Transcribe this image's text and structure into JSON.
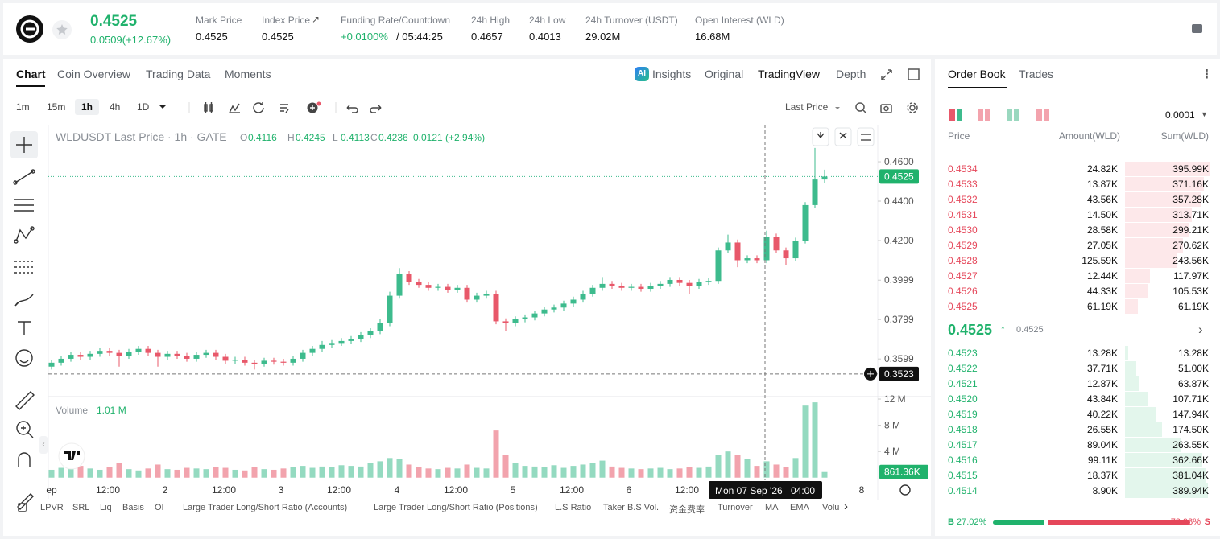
{
  "header": {
    "price": "0.4525",
    "change": "0.0509(+12.67%)",
    "stats": [
      {
        "label": "Mark Price",
        "value": "0.4525"
      },
      {
        "label": "Index Price",
        "value": "0.4525"
      },
      {
        "label": "Funding Rate/Countdown",
        "value": "+0.0100%",
        "extra": "/ 05:44:25"
      },
      {
        "label": "24h High",
        "value": "0.4657"
      },
      {
        "label": "24h Low",
        "value": "0.4013"
      },
      {
        "label": "24h Turnover (USDT)",
        "value": "29.02M"
      },
      {
        "label": "Open Interest (WLD)",
        "value": "16.68M"
      }
    ]
  },
  "tabs": [
    "Chart",
    "Coin Overview",
    "Trading Data",
    "Moments"
  ],
  "views": {
    "badge": "AI",
    "items": [
      "Insights",
      "Original",
      "TradingView",
      "Depth"
    ]
  },
  "intervals": [
    "1m",
    "15m",
    "1h",
    "4h",
    "1D"
  ],
  "price_type": "Last Price",
  "chart_data": {
    "type": "candlestick",
    "legend": "WLDUSDT Last Price · 1h · GATE",
    "ohlc": [
      {
        "key": "O",
        "value": "0.4116"
      },
      {
        "key": "H",
        "value": "0.4245"
      },
      {
        "key": "L",
        "value": "0.4113"
      },
      {
        "key": "C",
        "value": "0.4236"
      }
    ],
    "ohlc_change": "0.0121 (+2.94%)",
    "ylim": [
      0.3412,
      0.4788
    ],
    "yticks": [
      {
        "value": 0.46,
        "label": "0.4600"
      },
      {
        "value": 0.44,
        "label": "0.4400"
      },
      {
        "value": 0.42,
        "label": "0.4200"
      },
      0.3999,
      0.3799,
      0.3599
    ],
    "last_price": 0.4525,
    "crosshair_price": 0.3523,
    "crosshair_date": "Mon 07 Sep '26",
    "crosshair_time": "04:00",
    "xticks": [
      "ep",
      "12:00",
      "2",
      "12:00",
      "3",
      "12:00",
      "4",
      "12:00",
      "5",
      "12:00",
      "6",
      "12:00",
      "8"
    ],
    "up_color": "#3dbb8d",
    "down_color": "#e8586a",
    "open": [
      0.356,
      0.358,
      0.36,
      0.362,
      0.361,
      0.3625,
      0.364,
      0.363,
      0.3615,
      0.3635,
      0.365,
      0.363,
      0.361,
      0.3625,
      0.3615,
      0.36,
      0.362,
      0.363,
      0.361,
      0.359,
      0.3595,
      0.358,
      0.3575,
      0.359,
      0.3585,
      0.358,
      0.36,
      0.363,
      0.365,
      0.367,
      0.368,
      0.369,
      0.37,
      0.372,
      0.374,
      0.378,
      0.392,
      0.403,
      0.399,
      0.3975,
      0.396,
      0.3965,
      0.395,
      0.396,
      0.39,
      0.392,
      0.393,
      0.379,
      0.378,
      0.38,
      0.381,
      0.383,
      0.385,
      0.386,
      0.388,
      0.39,
      0.393,
      0.396,
      0.398,
      0.397,
      0.396,
      0.3965,
      0.3955,
      0.397,
      0.398,
      0.4,
      0.3985,
      0.397,
      0.399,
      0.3995,
      0.415,
      0.419,
      0.41,
      0.411,
      0.41,
      0.422,
      0.415,
      0.411,
      0.42,
      0.438,
      0.451
    ],
    "high": [
      0.3595,
      0.3615,
      0.3635,
      0.3635,
      0.364,
      0.3655,
      0.3655,
      0.3645,
      0.365,
      0.3665,
      0.3665,
      0.3645,
      0.364,
      0.364,
      0.363,
      0.3635,
      0.3645,
      0.3645,
      0.3625,
      0.361,
      0.361,
      0.3595,
      0.3605,
      0.3605,
      0.36,
      0.3615,
      0.3645,
      0.3665,
      0.369,
      0.3695,
      0.3705,
      0.3715,
      0.3735,
      0.3755,
      0.38,
      0.394,
      0.406,
      0.4045,
      0.4005,
      0.399,
      0.398,
      0.398,
      0.3975,
      0.3975,
      0.3935,
      0.3945,
      0.3945,
      0.3805,
      0.3815,
      0.3825,
      0.3845,
      0.3865,
      0.3875,
      0.3895,
      0.3915,
      0.3945,
      0.3975,
      0.4015,
      0.3995,
      0.3985,
      0.398,
      0.398,
      0.3985,
      0.3995,
      0.4015,
      0.4015,
      0.4,
      0.4005,
      0.401,
      0.4165,
      0.423,
      0.4205,
      0.4125,
      0.4125,
      0.425,
      0.4235,
      0.4165,
      0.4215,
      0.4395,
      0.467,
      0.456
    ],
    "low": [
      0.3545,
      0.3565,
      0.3585,
      0.3595,
      0.3595,
      0.361,
      0.3615,
      0.356,
      0.36,
      0.362,
      0.3615,
      0.356,
      0.3595,
      0.36,
      0.3585,
      0.3585,
      0.3605,
      0.3595,
      0.3575,
      0.3575,
      0.3565,
      0.3545,
      0.356,
      0.357,
      0.3565,
      0.3565,
      0.3585,
      0.3615,
      0.3635,
      0.3655,
      0.3665,
      0.3675,
      0.3685,
      0.3705,
      0.3725,
      0.3765,
      0.3905,
      0.3975,
      0.396,
      0.3945,
      0.3945,
      0.3935,
      0.3935,
      0.3885,
      0.3885,
      0.3905,
      0.3775,
      0.374,
      0.3765,
      0.3785,
      0.3795,
      0.3815,
      0.3835,
      0.3845,
      0.3865,
      0.3885,
      0.3915,
      0.3945,
      0.3955,
      0.3945,
      0.3945,
      0.394,
      0.394,
      0.3955,
      0.3965,
      0.397,
      0.393,
      0.3955,
      0.3975,
      0.398,
      0.4135,
      0.4065,
      0.4085,
      0.4085,
      0.4085,
      0.4135,
      0.4075,
      0.4095,
      0.4185,
      0.4365,
      0.449
    ],
    "close": [
      0.358,
      0.36,
      0.362,
      0.361,
      0.3625,
      0.364,
      0.363,
      0.3615,
      0.3635,
      0.365,
      0.363,
      0.361,
      0.3625,
      0.3615,
      0.36,
      0.362,
      0.363,
      0.361,
      0.359,
      0.3595,
      0.358,
      0.3575,
      0.359,
      0.3585,
      0.358,
      0.36,
      0.363,
      0.365,
      0.367,
      0.368,
      0.369,
      0.37,
      0.372,
      0.374,
      0.378,
      0.392,
      0.403,
      0.399,
      0.3975,
      0.396,
      0.3965,
      0.395,
      0.396,
      0.39,
      0.392,
      0.393,
      0.379,
      0.378,
      0.38,
      0.381,
      0.383,
      0.385,
      0.386,
      0.388,
      0.39,
      0.393,
      0.396,
      0.398,
      0.397,
      0.396,
      0.3965,
      0.3955,
      0.397,
      0.398,
      0.4,
      0.3985,
      0.397,
      0.399,
      0.3995,
      0.415,
      0.419,
      0.41,
      0.411,
      0.41,
      0.422,
      0.415,
      0.411,
      0.42,
      0.438,
      0.451,
      0.4525
    ],
    "volume_title": "Volume",
    "volume_legend": "1.01 M",
    "vlim": [
      -0.4,
      12.25
    ],
    "vticks": [
      {
        "value": 12,
        "label": "12 M"
      },
      {
        "value": 8,
        "label": "8 M"
      },
      {
        "value": 4,
        "label": "4 M"
      }
    ],
    "volume": [
      1.2,
      1.5,
      1.3,
      1.8,
      1.4,
      1.2,
      1.6,
      2.2,
      1.3,
      1.1,
      1.4,
      2.0,
      1.3,
      1.2,
      1.5,
      1.4,
      1.3,
      1.6,
      1.5,
      1.2,
      1.1,
      1.6,
      1.3,
      1.2,
      1.4,
      1.6,
      1.8,
      1.5,
      1.7,
      1.6,
      1.9,
      1.8,
      1.7,
      2.2,
      2.5,
      3.0,
      2.8,
      2.0,
      1.6,
      1.4,
      1.3,
      1.5,
      1.4,
      2.0,
      1.5,
      1.4,
      7.2,
      3.5,
      2.2,
      1.8,
      1.7,
      1.6,
      1.9,
      1.5,
      1.8,
      2.0,
      2.3,
      2.6,
      1.7,
      1.5,
      1.4,
      1.3,
      1.4,
      1.5,
      1.3,
      1.4,
      1.6,
      1.5,
      1.7,
      3.5,
      4.0,
      3.5,
      2.8,
      1.8,
      2.5,
      2.0,
      1.6,
      3.0,
      11.0,
      11.5,
      0.86136
    ],
    "current_volume_label": "861.36K"
  },
  "indicators": [
    "LPVR",
    "SRL",
    "Liq",
    "Basis",
    "OI",
    "Large Trader Long/Short Ratio (Accounts)",
    "Large Trader Long/Short Ratio (Positions)",
    "L.S Ratio",
    "Taker B.S Vol.",
    "资金费率",
    "Turnover",
    "MA",
    "EMA",
    "Volu"
  ],
  "order_book": {
    "tabs": [
      "Order Book",
      "Trades"
    ],
    "precision": "0.0001",
    "columns": [
      "Price",
      "Amount(WLD)",
      "Sum(WLD)"
    ],
    "asks": [
      {
        "price": "0.4534",
        "amount": "24.82K",
        "sum": 395990,
        "sum_label": "395.99K"
      },
      {
        "price": "0.4533",
        "amount": "13.87K",
        "sum": 371160,
        "sum_label": "371.16K"
      },
      {
        "price": "0.4532",
        "amount": "43.56K",
        "sum": 357280,
        "sum_label": "357.28K"
      },
      {
        "price": "0.4531",
        "amount": "14.50K",
        "sum": 313710,
        "sum_label": "313.71K"
      },
      {
        "price": "0.4530",
        "amount": "28.58K",
        "sum": 299210,
        "sum_label": "299.21K"
      },
      {
        "price": "0.4529",
        "amount": "27.05K",
        "sum": 270620,
        "sum_label": "270.62K"
      },
      {
        "price": "0.4528",
        "amount": "125.59K",
        "sum": 243560,
        "sum_label": "243.56K"
      },
      {
        "price": "0.4527",
        "amount": "12.44K",
        "sum": 117970,
        "sum_label": "117.97K"
      },
      {
        "price": "0.4526",
        "amount": "44.33K",
        "sum": 105530,
        "sum_label": "105.53K"
      },
      {
        "price": "0.4525",
        "amount": "61.19K",
        "sum": 61190,
        "sum_label": "61.19K"
      }
    ],
    "last": "0.4525",
    "mark": "0.4525",
    "bids": [
      {
        "price": "0.4523",
        "amount": "13.28K",
        "sum": 13280,
        "sum_label": "13.28K"
      },
      {
        "price": "0.4522",
        "amount": "37.71K",
        "sum": 51000,
        "sum_label": "51.00K"
      },
      {
        "price": "0.4521",
        "amount": "12.87K",
        "sum": 63870,
        "sum_label": "63.87K"
      },
      {
        "price": "0.4520",
        "amount": "43.84K",
        "sum": 107710,
        "sum_label": "107.71K"
      },
      {
        "price": "0.4519",
        "amount": "40.22K",
        "sum": 147940,
        "sum_label": "147.94K"
      },
      {
        "price": "0.4518",
        "amount": "26.55K",
        "sum": 174500,
        "sum_label": "174.50K"
      },
      {
        "price": "0.4517",
        "amount": "89.04K",
        "sum": 263550,
        "sum_label": "263.55K"
      },
      {
        "price": "0.4516",
        "amount": "99.11K",
        "sum": 362660,
        "sum_label": "362.66K"
      },
      {
        "price": "0.4515",
        "amount": "18.37K",
        "sum": 381040,
        "sum_label": "381.04K"
      },
      {
        "price": "0.4514",
        "amount": "8.90K",
        "sum": 389940,
        "sum_label": "389.94K"
      }
    ],
    "ratio": {
      "buy_key": "B",
      "buy": 27.02,
      "buy_label": "27.02%",
      "sell": 72.98,
      "sell_label": "72.98%",
      "sell_key": "S"
    }
  }
}
